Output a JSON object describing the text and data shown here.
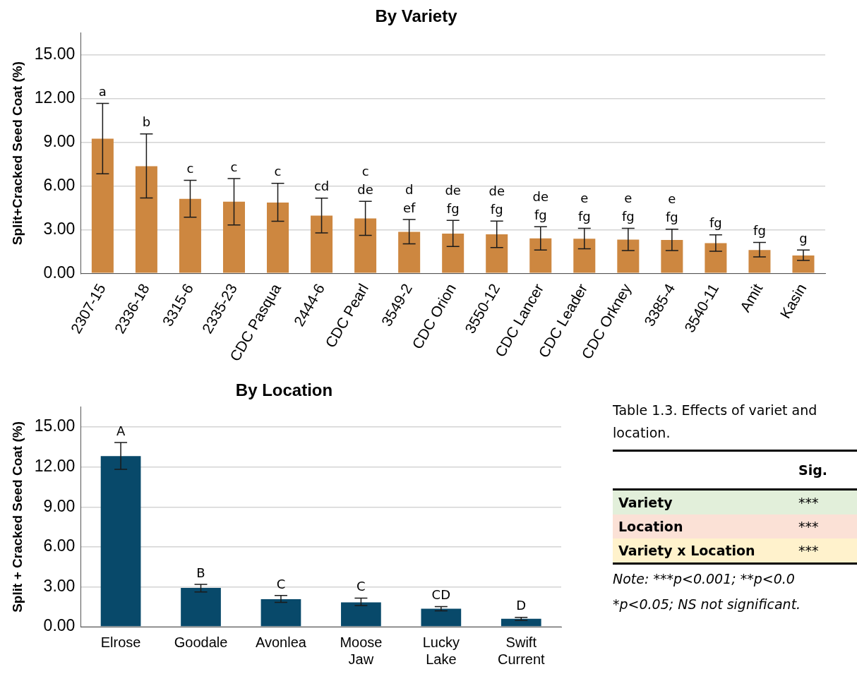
{
  "chart_data": [
    {
      "type": "bar",
      "title": "By Variety",
      "ylabel": "Split+Cracked Seed Coat (%)",
      "color": "#cd8740",
      "categories": [
        "2307-15",
        "2336-18",
        "3315-6",
        "2335-23",
        "CDC Pasqua",
        "2444-6",
        "CDC Pearl",
        "3549-2",
        "CDC Orion",
        "3550-12",
        "CDC Lancer",
        "CDC Leader",
        "CDC Orkney",
        "3385-4",
        "3540-11",
        "Amit",
        "Kasin"
      ],
      "values": [
        9.24,
        7.36,
        5.11,
        4.92,
        4.86,
        3.96,
        3.77,
        2.85,
        2.73,
        2.68,
        2.4,
        2.38,
        2.31,
        2.29,
        2.07,
        1.6,
        1.23
      ],
      "errors": [
        [
          6.83,
          11.67
        ],
        [
          5.18,
          9.57
        ],
        [
          3.85,
          6.38
        ],
        [
          3.32,
          6.51
        ],
        [
          3.57,
          6.18
        ],
        [
          2.78,
          5.16
        ],
        [
          2.61,
          4.94
        ],
        [
          2.03,
          3.7
        ],
        [
          1.84,
          3.63
        ],
        [
          1.77,
          3.59
        ],
        [
          1.6,
          3.2
        ],
        [
          1.69,
          3.09
        ],
        [
          1.56,
          3.09
        ],
        [
          1.56,
          3.03
        ],
        [
          1.51,
          2.64
        ],
        [
          1.13,
          2.12
        ],
        [
          0.89,
          1.6
        ]
      ],
      "value_labels": [
        "a",
        "b",
        "c",
        "c",
        "c",
        "cd",
        "c de",
        "d ef",
        "de fg",
        "de fg",
        "de fg",
        "e fg",
        "e fg",
        "e fg",
        "fg",
        "fg",
        "g"
      ],
      "ylim": [
        0,
        16.5
      ],
      "yticks": [
        {
          "value": 0,
          "label": "0.00"
        },
        {
          "value": 3,
          "label": "3.00"
        },
        {
          "value": 6,
          "label": "6.00"
        },
        {
          "value": 9,
          "label": "9.00"
        },
        {
          "value": 12,
          "label": "12.00"
        },
        {
          "value": 15,
          "label": "15.00"
        }
      ],
      "grid": "y",
      "legend": false
    },
    {
      "type": "bar",
      "title": "By Location",
      "ylabel": "Split + Cracked Seed Coat (%)",
      "color": "#08496a",
      "categories": [
        "Elrose",
        "Goodale",
        "Avonlea",
        "Moose Jaw",
        "Lucky Lake",
        "Swift Current"
      ],
      "values": [
        12.82,
        2.91,
        2.07,
        1.83,
        1.35,
        0.59
      ],
      "errors": [
        [
          11.82,
          13.84
        ],
        [
          2.61,
          3.18
        ],
        [
          1.83,
          2.34
        ],
        [
          1.59,
          2.15
        ],
        [
          1.19,
          1.51
        ],
        [
          0.48,
          0.7
        ]
      ],
      "value_labels": [
        "A",
        "B",
        "C",
        "C",
        "CD",
        "D"
      ],
      "ylim": [
        0,
        16.5
      ],
      "yticks": [
        {
          "value": 0,
          "label": "0.00"
        },
        {
          "value": 3,
          "label": "3.00"
        },
        {
          "value": 6,
          "label": "6.00"
        },
        {
          "value": 9,
          "label": "9.00"
        },
        {
          "value": 12,
          "label": "12.00"
        },
        {
          "value": 15,
          "label": "15.00"
        }
      ],
      "grid": "y",
      "legend": false
    },
    {
      "type": "other",
      "title": "Table 1.3. Effects of variet and location.",
      "annotations": [
        "Sig.",
        "Variety",
        "***",
        "Location",
        "***",
        "Variety x Location",
        "***",
        "Note: ***p<0.001; **p<0.0",
        "*p<0.05; NS not significant."
      ]
    }
  ]
}
